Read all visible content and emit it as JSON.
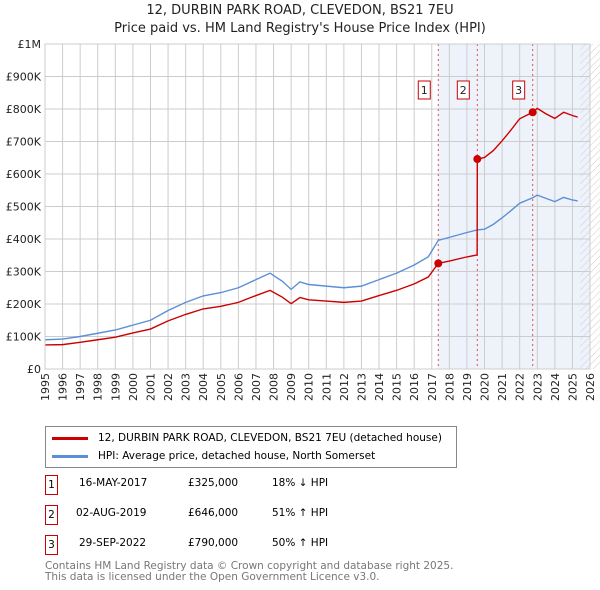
{
  "chart_data": {
    "type": "line",
    "title": "12, DURBIN PARK ROAD, CLEVEDON, BS21 7EU",
    "subtitle": "Price paid vs. HM Land Registry's House Price Index (HPI)",
    "xlim": [
      1995,
      2026
    ],
    "ylim": [
      0,
      1000000
    ],
    "yticks": [
      {
        "v": 0,
        "label": "£0"
      },
      {
        "v": 100000,
        "label": "£100K"
      },
      {
        "v": 200000,
        "label": "£200K"
      },
      {
        "v": 300000,
        "label": "£300K"
      },
      {
        "v": 400000,
        "label": "£400K"
      },
      {
        "v": 500000,
        "label": "£500K"
      },
      {
        "v": 600000,
        "label": "£600K"
      },
      {
        "v": 700000,
        "label": "£700K"
      },
      {
        "v": 800000,
        "label": "£800K"
      },
      {
        "v": 900000,
        "label": "£900K"
      },
      {
        "v": 1000000,
        "label": "£1M"
      }
    ],
    "xticks": [
      1995,
      1996,
      1997,
      1998,
      1999,
      2000,
      2001,
      2002,
      2003,
      2004,
      2005,
      2006,
      2007,
      2008,
      2009,
      2010,
      2011,
      2012,
      2013,
      2014,
      2015,
      2016,
      2017,
      2018,
      2019,
      2020,
      2021,
      2022,
      2023,
      2024,
      2025,
      2026
    ],
    "grid": true,
    "series": [
      {
        "name": "12, DURBIN PARK ROAD, CLEVEDON, BS21 7EU (detached house)",
        "color": "#cc0000",
        "points": [
          [
            1995,
            74000
          ],
          [
            1996,
            75000
          ],
          [
            1997,
            82000
          ],
          [
            1998,
            90000
          ],
          [
            1999,
            98000
          ],
          [
            2000,
            111000
          ],
          [
            2001,
            123000
          ],
          [
            2002,
            148000
          ],
          [
            2003,
            168000
          ],
          [
            2004,
            185000
          ],
          [
            2005,
            193000
          ],
          [
            2006,
            205000
          ],
          [
            2007,
            226000
          ],
          [
            2007.8,
            242000
          ],
          [
            2008.5,
            221000
          ],
          [
            2009,
            201000
          ],
          [
            2009.5,
            220000
          ],
          [
            2010,
            213000
          ],
          [
            2011,
            209000
          ],
          [
            2012,
            205000
          ],
          [
            2013,
            209000
          ],
          [
            2014,
            226000
          ],
          [
            2015,
            242000
          ],
          [
            2016,
            262000
          ],
          [
            2016.8,
            283000
          ],
          [
            2017.37,
            325000
          ],
          [
            2018,
            332000
          ],
          [
            2019,
            345000
          ],
          [
            2019.58,
            351000
          ],
          [
            2019.59,
            646000
          ],
          [
            2020,
            651000
          ],
          [
            2020.5,
            672000
          ],
          [
            2021,
            702000
          ],
          [
            2021.5,
            735000
          ],
          [
            2022,
            770000
          ],
          [
            2022.74,
            790000
          ],
          [
            2023,
            802000
          ],
          [
            2023.5,
            785000
          ],
          [
            2024,
            771000
          ],
          [
            2024.5,
            790000
          ],
          [
            2025,
            780000
          ],
          [
            2025.3,
            775000
          ]
        ]
      },
      {
        "name": "HPI: Average price, detached house, North Somerset",
        "color": "#5b8fd6",
        "points": [
          [
            1995,
            90000
          ],
          [
            1996,
            92000
          ],
          [
            1997,
            100000
          ],
          [
            1998,
            110000
          ],
          [
            1999,
            120000
          ],
          [
            2000,
            135000
          ],
          [
            2001,
            150000
          ],
          [
            2002,
            180000
          ],
          [
            2003,
            205000
          ],
          [
            2004,
            225000
          ],
          [
            2005,
            235000
          ],
          [
            2006,
            250000
          ],
          [
            2007,
            275000
          ],
          [
            2007.8,
            295000
          ],
          [
            2008.5,
            270000
          ],
          [
            2009,
            245000
          ],
          [
            2009.5,
            268000
          ],
          [
            2010,
            260000
          ],
          [
            2011,
            255000
          ],
          [
            2012,
            250000
          ],
          [
            2013,
            255000
          ],
          [
            2014,
            275000
          ],
          [
            2015,
            295000
          ],
          [
            2016,
            320000
          ],
          [
            2016.8,
            345000
          ],
          [
            2017.37,
            396000
          ],
          [
            2018,
            405000
          ],
          [
            2019,
            420000
          ],
          [
            2019.58,
            428000
          ],
          [
            2020,
            430000
          ],
          [
            2020.5,
            445000
          ],
          [
            2021,
            465000
          ],
          [
            2021.5,
            487000
          ],
          [
            2022,
            510000
          ],
          [
            2022.74,
            527000
          ],
          [
            2023,
            535000
          ],
          [
            2023.5,
            525000
          ],
          [
            2024,
            515000
          ],
          [
            2024.5,
            528000
          ],
          [
            2025,
            520000
          ],
          [
            2025.3,
            517000
          ]
        ]
      }
    ],
    "sales": [
      {
        "id": "1",
        "x": 2017.37,
        "y": 325000,
        "date": "16-MAY-2017",
        "price": "£325,000",
        "hpi": "18% ↓ HPI"
      },
      {
        "id": "2",
        "x": 2019.59,
        "y": 646000,
        "date": "02-AUG-2019",
        "price": "£646,000",
        "hpi": "51% ↑ HPI"
      },
      {
        "id": "3",
        "x": 2022.74,
        "y": 790000,
        "date": "29-SEP-2022",
        "price": "£790,000",
        "hpi": "50% ↑ HPI"
      }
    ],
    "legend_position": "below"
  },
  "footer": {
    "line1": "Contains HM Land Registry data © Crown copyright and database right 2025.",
    "line2": "This data is licensed under the Open Government Licence v3.0."
  }
}
